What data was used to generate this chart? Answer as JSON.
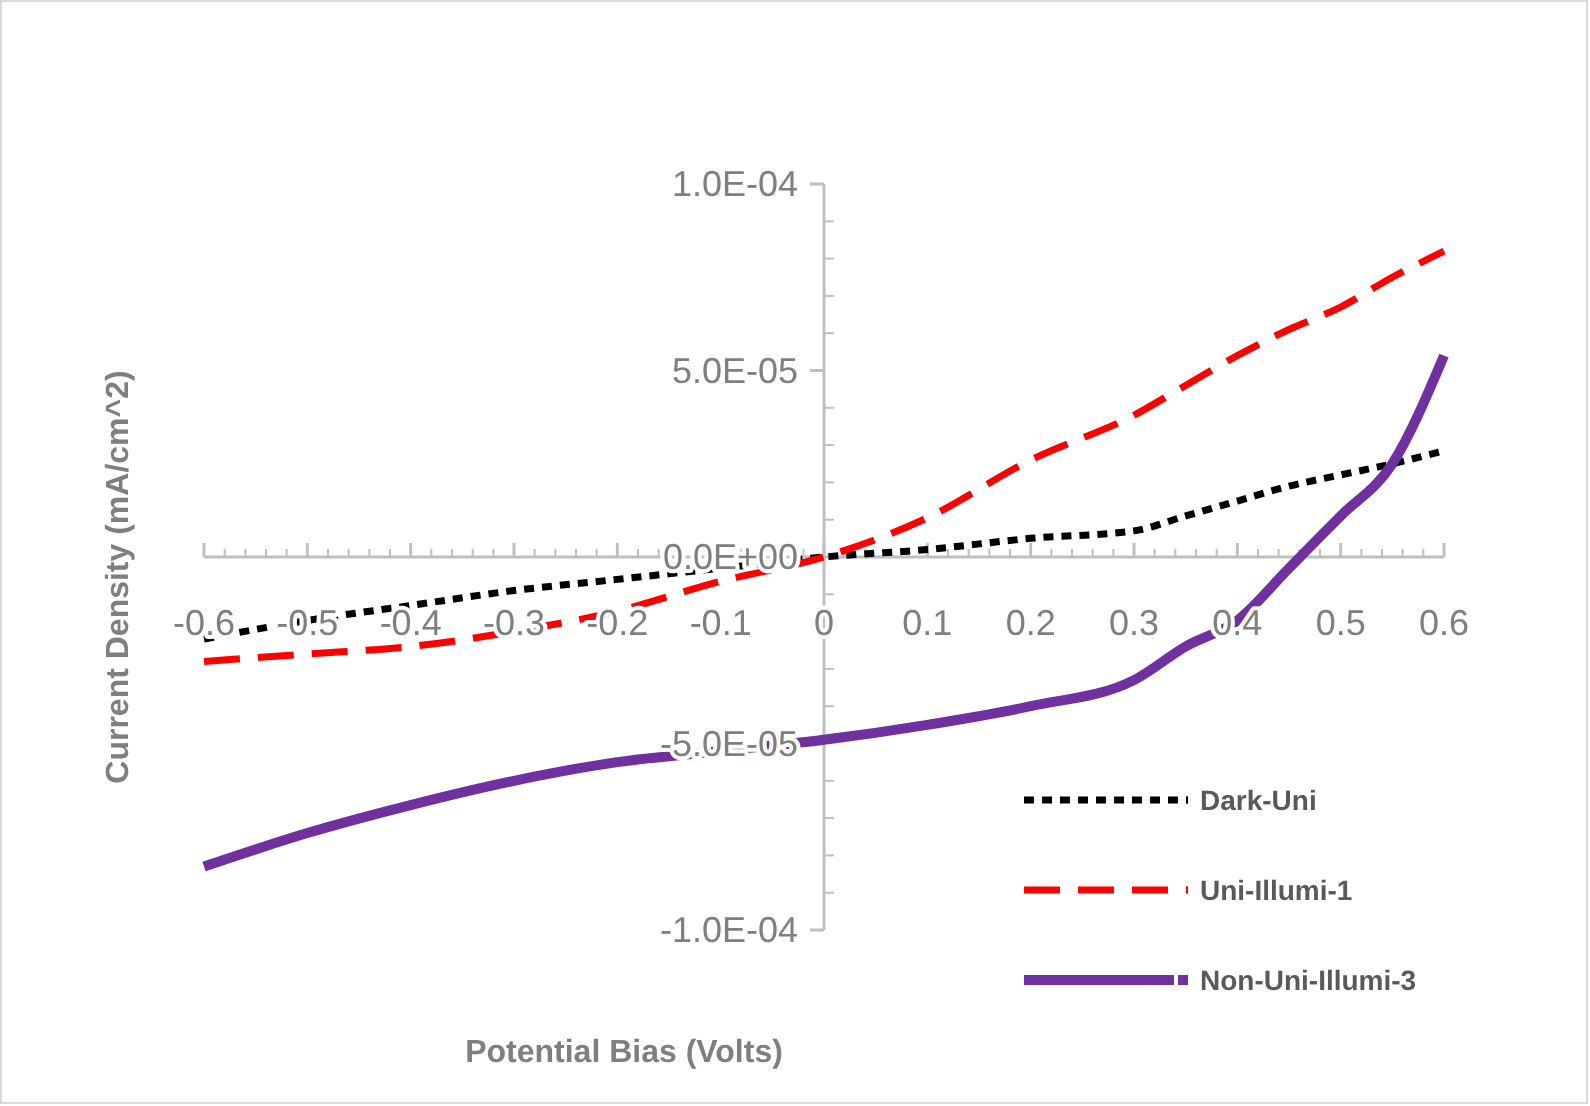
{
  "chart_data": {
    "type": "line",
    "xlabel": "Potential Bias (Volts)",
    "ylabel": "Current Density (mA/cm^2)",
    "xlim": [
      -0.6,
      0.6
    ],
    "xticks": [
      -0.6,
      -0.5,
      -0.4,
      -0.3,
      -0.2,
      -0.1,
      0,
      0.1,
      0.2,
      0.3,
      0.4,
      0.5,
      0.6
    ],
    "ylim": [
      -0.0001,
      0.0001
    ],
    "yticks": [
      {
        "value": -0.0001,
        "label": "-1.0E-04"
      },
      {
        "value": -5e-05,
        "label": "-5.0E-05"
      },
      {
        "value": 0,
        "label": "0.0E+00"
      },
      {
        "value": 5e-05,
        "label": "5.0E-05"
      },
      {
        "value": 0.0001,
        "label": "1.0E-04"
      }
    ],
    "grid": false,
    "legend": "bottom right",
    "marker": "none",
    "x": [
      -0.6,
      -0.5,
      -0.4,
      -0.3,
      -0.2,
      -0.1,
      0,
      0.1,
      0.2,
      0.3,
      0.35,
      0.4,
      0.45,
      0.5,
      0.55,
      0.6
    ],
    "series": [
      {
        "name": "Dark-Uni",
        "color": "#000000",
        "line_style": "dotted",
        "values": [
          -2.2e-05,
          -1.7e-05,
          -1.3e-05,
          -9e-06,
          -6e-06,
          -3e-06,
          0,
          2e-06,
          5e-06,
          7e-06,
          1.1e-05,
          1.5e-05,
          1.9e-05,
          2.2e-05,
          2.5e-05,
          2.85e-05
        ]
      },
      {
        "name": "Uni-Illumi-1",
        "color": "#ff0000",
        "line_style": "dashed",
        "values": [
          -2.8e-05,
          -2.6e-05,
          -2.4e-05,
          -2e-05,
          -1.45e-05,
          -6.5e-06,
          0,
          1.05e-05,
          2.6e-05,
          3.8e-05,
          4.6e-05,
          5.4e-05,
          6.1e-05,
          6.7e-05,
          7.5e-05,
          8.2e-05
        ]
      },
      {
        "name": "Non-Uni-Illumi-3",
        "color": "#7030a0",
        "line_style": "solid",
        "values": [
          -8.3e-05,
          -7.4e-05,
          -6.65e-05,
          -6e-05,
          -5.5e-05,
          -5.2e-05,
          -4.9e-05,
          -4.5e-05,
          -4e-05,
          -3.3e-05,
          -2.4e-05,
          -1.7e-05,
          -3e-06,
          1.1e-05,
          2.5e-05,
          5.4e-05
        ]
      }
    ]
  }
}
